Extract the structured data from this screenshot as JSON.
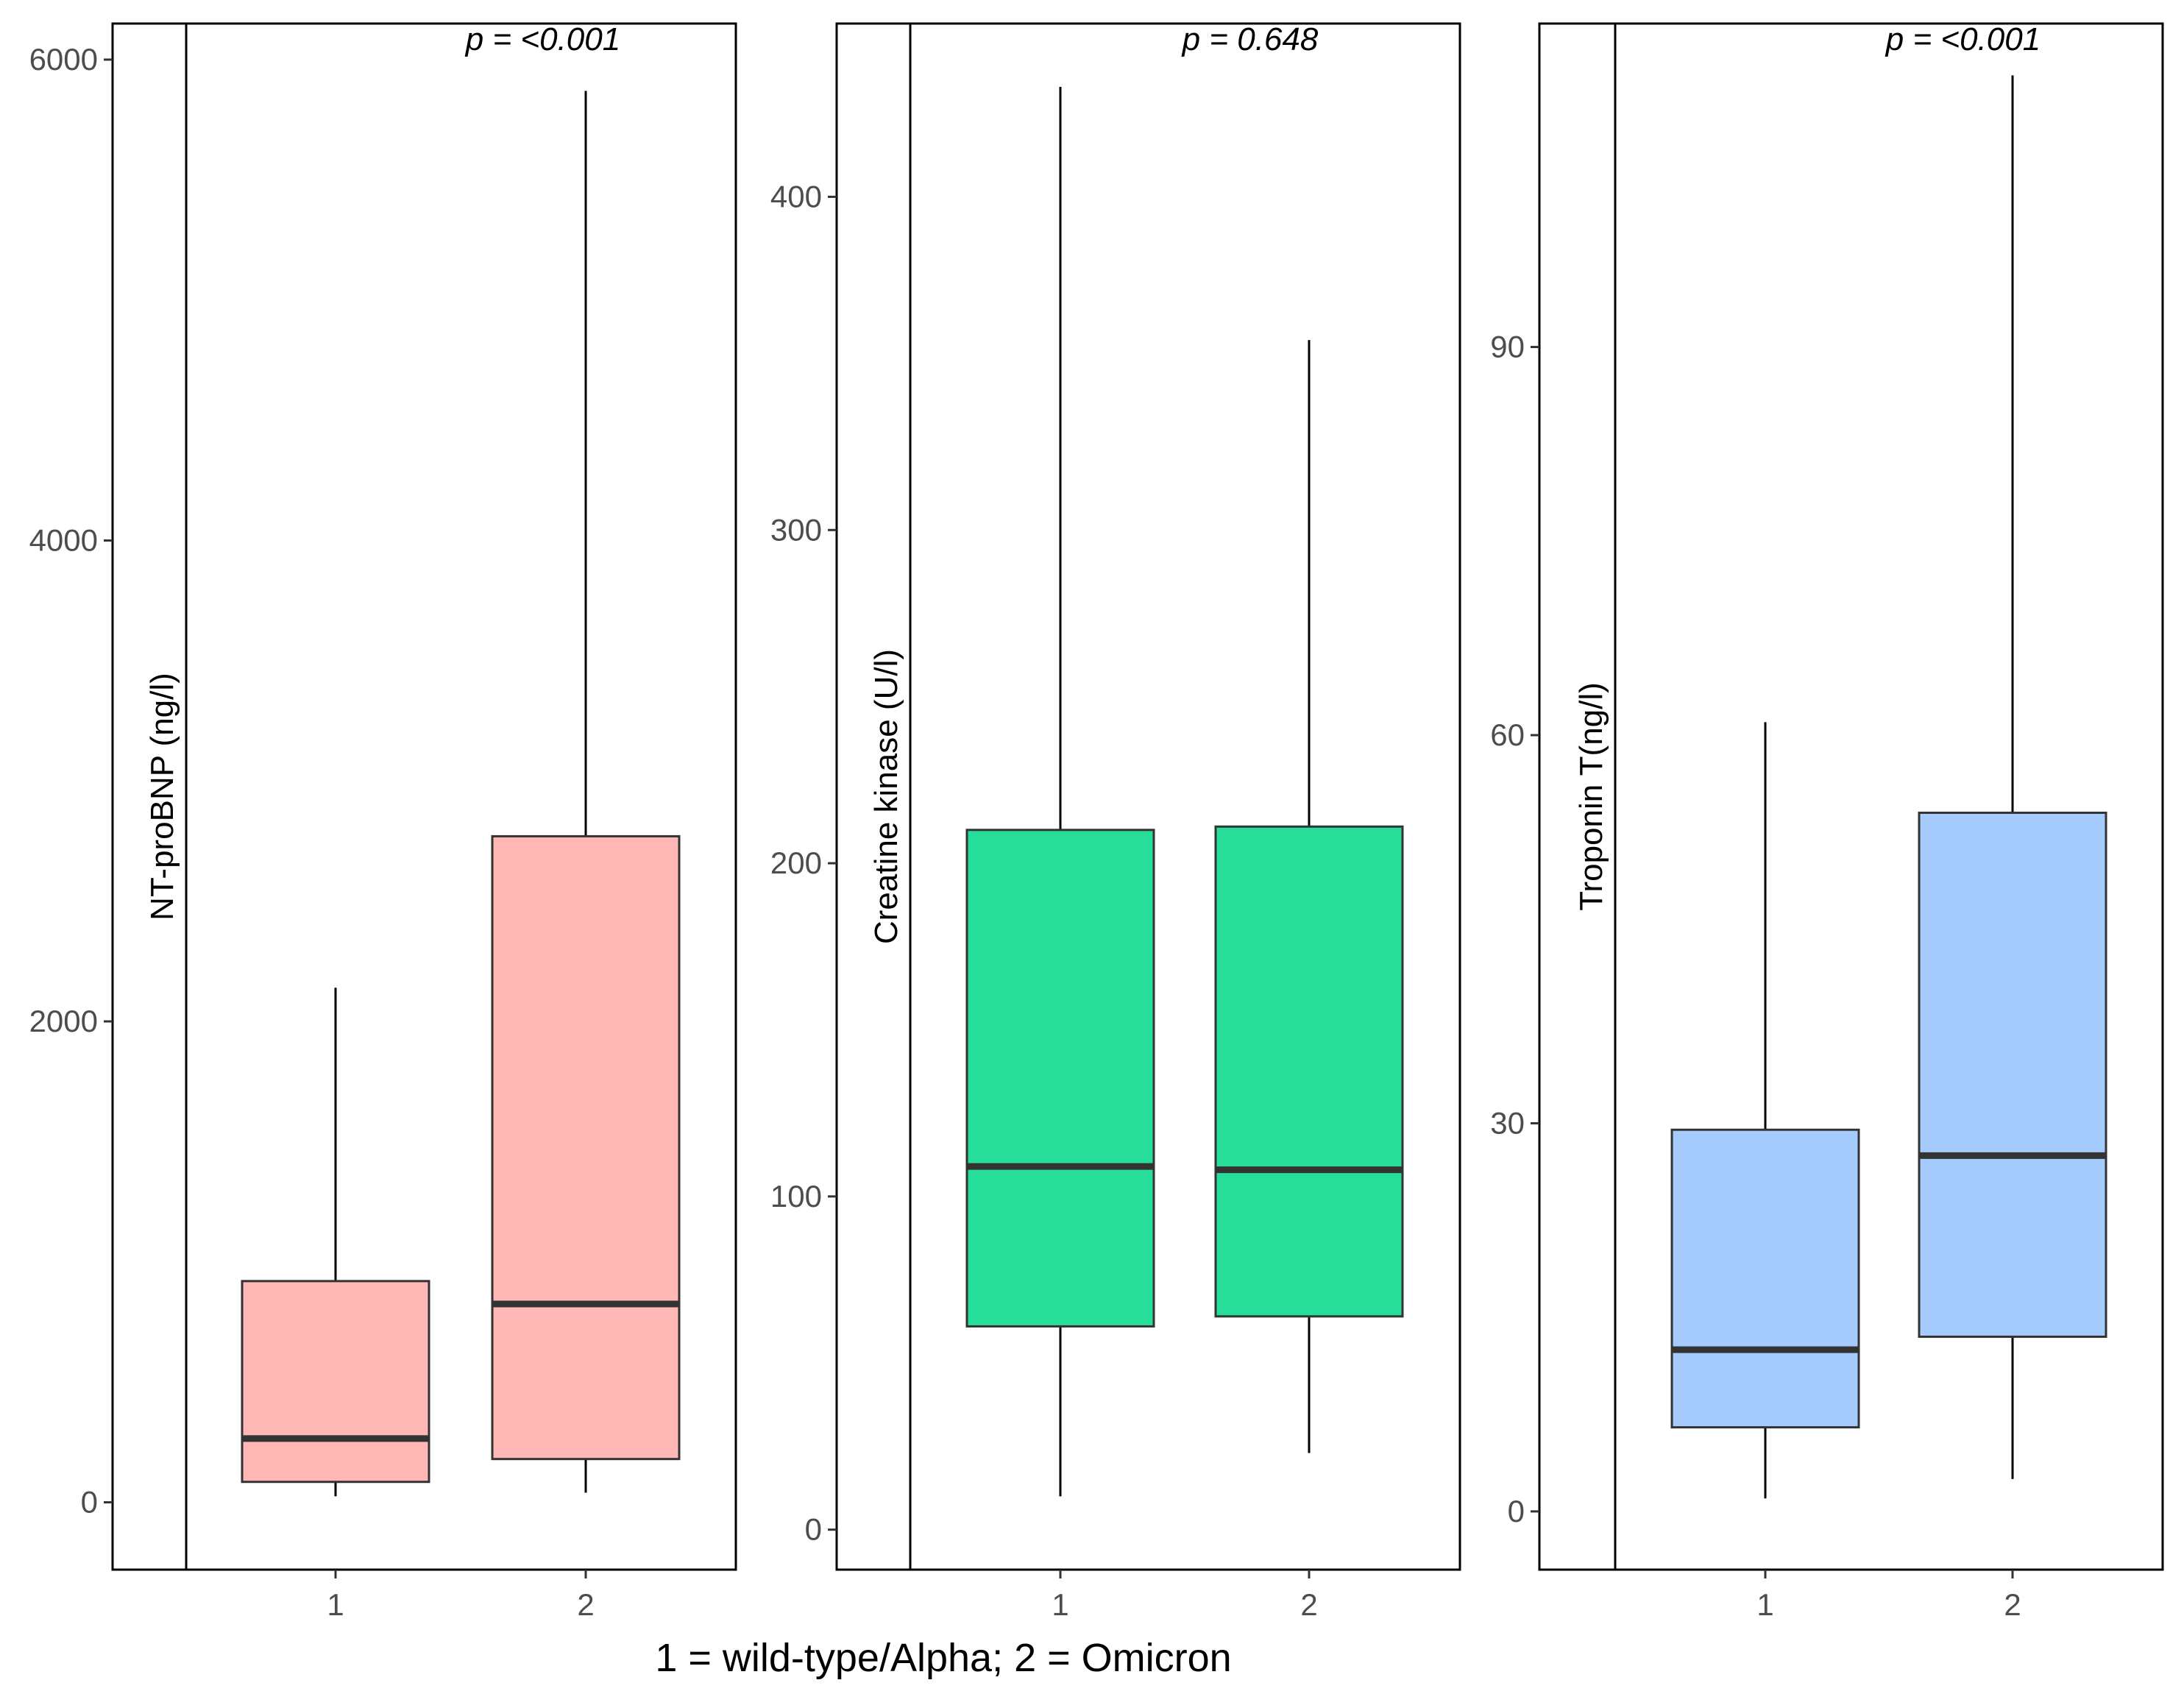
{
  "x_axis_title": "1 = wild-type/Alpha; 2 = Omicron",
  "chart_data": [
    {
      "type": "boxplot",
      "ylabel": "NT-proBNP (ng/l)",
      "annotation": "p = <0.001",
      "ylim": [
        -280,
        6150
      ],
      "yticks": [
        0,
        2000,
        4000,
        6000
      ],
      "ytick_labels": [
        "0",
        "2000",
        "4000",
        "6000"
      ],
      "categories": [
        "1",
        "2"
      ],
      "fill_color": "#FFB8B6",
      "boxes": [
        {
          "category": "1",
          "min": 25,
          "q1": 85,
          "median": 265,
          "q3": 920,
          "max": 2140
        },
        {
          "category": "2",
          "min": 40,
          "q1": 180,
          "median": 825,
          "q3": 2770,
          "max": 5870
        }
      ]
    },
    {
      "type": "boxplot",
      "ylabel": "Creatine kinase (U/l)",
      "annotation": "p = 0.648",
      "ylim": [
        -12,
        452
      ],
      "yticks": [
        0,
        100,
        200,
        300,
        400
      ],
      "ytick_labels": [
        "0",
        "100",
        "200",
        "300",
        "400"
      ],
      "categories": [
        "1",
        "2"
      ],
      "fill_color": "#26DE99",
      "boxes": [
        {
          "category": "1",
          "min": 10,
          "q1": 61,
          "median": 109,
          "q3": 210,
          "max": 433
        },
        {
          "category": "2",
          "min": 23,
          "q1": 64,
          "median": 108,
          "q3": 211,
          "max": 357
        }
      ]
    },
    {
      "type": "boxplot",
      "ylabel": "Troponin T(ng/l)",
      "annotation": "p = <0.001",
      "ylim": [
        -4.5,
        115
      ],
      "yticks": [
        0,
        30,
        60,
        90
      ],
      "ytick_labels": [
        "0",
        "30",
        "60",
        "90"
      ],
      "categories": [
        "1",
        "2"
      ],
      "fill_color": "#A4CBFC",
      "boxes": [
        {
          "category": "1",
          "min": 1,
          "q1": 6.5,
          "median": 12.5,
          "q3": 29.5,
          "max": 61
        },
        {
          "category": "2",
          "min": 2.5,
          "q1": 13.5,
          "median": 27.5,
          "q3": 54,
          "max": 111
        }
      ]
    }
  ]
}
